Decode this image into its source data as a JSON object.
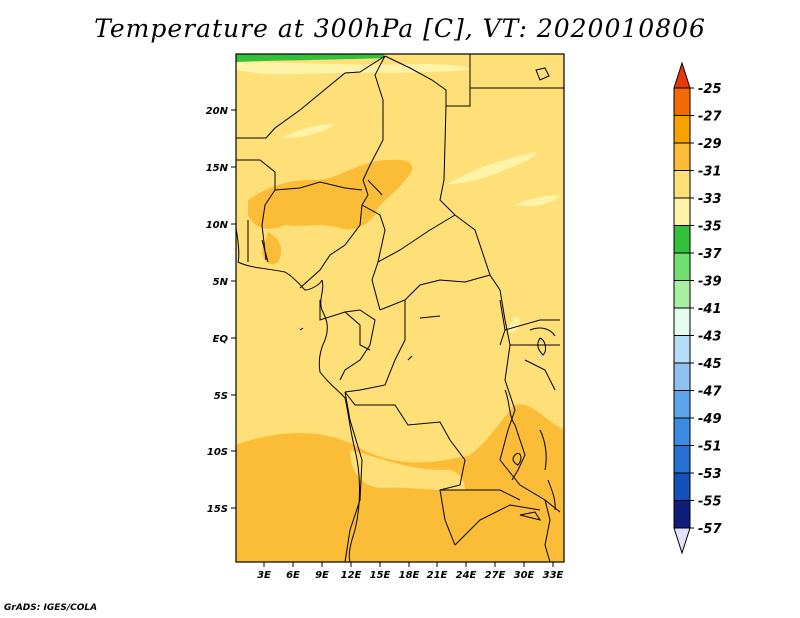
{
  "title": "Temperature at 300hPa [C], VT: 2020010806",
  "credit": "GrADS: IGES/COLA",
  "y_ticks": [
    "20N",
    "15N",
    "10N",
    "5N",
    "EQ",
    "5S",
    "10S",
    "15S"
  ],
  "x_ticks": [
    "3E",
    "6E",
    "9E",
    "12E",
    "15E",
    "18E",
    "21E",
    "24E",
    "27E",
    "30E",
    "33E"
  ],
  "colorbar": {
    "labels": [
      "-25",
      "-27",
      "-29",
      "-31",
      "-33",
      "-35",
      "-37",
      "-39",
      "-41",
      "-43",
      "-45",
      "-47",
      "-49",
      "-51",
      "-53",
      "-55",
      "-57"
    ],
    "colors": [
      "#e8380a",
      "#f36b00",
      "#f6a300",
      "#fbbd37",
      "#fedf78",
      "#fff3a8",
      "#32c13a",
      "#71df6f",
      "#a8f09f",
      "#e4fdf0",
      "#b7dcf7",
      "#8fc2f1",
      "#5ea4ea",
      "#3c8be2",
      "#2670d3",
      "#1350b9",
      "#0f1e7a",
      "#e2e2ff"
    ]
  },
  "chart_data": {
    "type": "heatmap",
    "title": "Temperature at 300hPa [C], VT: 2020010806",
    "lon_range": [
      0,
      34
    ],
    "lat_range": [
      -20,
      24.5
    ],
    "x_ticks": [
      "3E",
      "6E",
      "9E",
      "12E",
      "15E",
      "18E",
      "21E",
      "24E",
      "27E",
      "30E",
      "33E"
    ],
    "y_ticks": [
      "20N",
      "15N",
      "10N",
      "5N",
      "EQ",
      "5S",
      "10S",
      "15S"
    ],
    "levels": [
      -57,
      -55,
      -53,
      -51,
      -49,
      -47,
      -45,
      -43,
      -41,
      -39,
      -37,
      -35,
      -33,
      -31,
      -29,
      -27,
      -25
    ],
    "dominant_range": "-33 to -31",
    "warm_regions_range": "-31 to -29",
    "cool_regions_range": "-35 to -33",
    "coldest_region": "-37 to -35"
  }
}
